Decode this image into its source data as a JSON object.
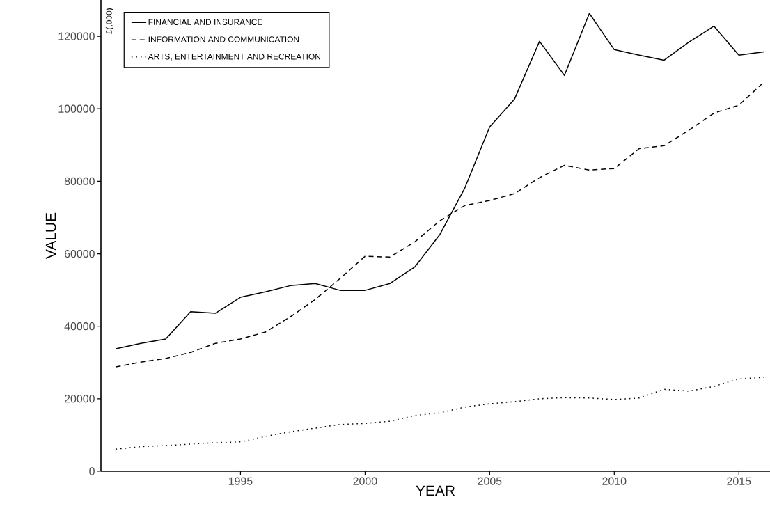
{
  "chart_data": {
    "type": "line",
    "xlabel": "YEAR",
    "ylabel": "VALUE",
    "annotations": [
      "£(,000)"
    ],
    "x": [
      1990,
      1991,
      1992,
      1993,
      1994,
      1995,
      1996,
      1997,
      1998,
      1999,
      2000,
      2001,
      2002,
      2003,
      2004,
      2005,
      2006,
      2007,
      2008,
      2009,
      2010,
      2011,
      2012,
      2013,
      2014,
      2015,
      2016
    ],
    "series": [
      {
        "name": "FINANCIAL AND INSURANCE",
        "color": "#000000",
        "line_style": "solid",
        "values": [
          33800,
          35300,
          36500,
          44000,
          43600,
          48000,
          49500,
          51200,
          51800,
          49900,
          49900,
          51800,
          56400,
          65300,
          78100,
          95000,
          102700,
          118600,
          109200,
          126300,
          116300,
          114800,
          113400,
          118400,
          122800,
          114800,
          115700
        ]
      },
      {
        "name": "INFORMATION AND COMMUNICATION",
        "color": "#000000",
        "line_style": "dashed",
        "values": [
          28800,
          30100,
          31100,
          32800,
          35300,
          36500,
          38400,
          42600,
          47400,
          53200,
          59300,
          59100,
          63300,
          69100,
          73300,
          74700,
          76600,
          81000,
          84400,
          83100,
          83500,
          89000,
          89800,
          94100,
          98800,
          101000,
          107300
        ]
      },
      {
        "name": "ARTS, ENTERTAINMENT AND RECREATION",
        "color": "#000000",
        "line_style": "dotted",
        "values": [
          6100,
          6800,
          7100,
          7500,
          7900,
          8100,
          9600,
          10900,
          11900,
          12900,
          13200,
          13800,
          15400,
          16100,
          17700,
          18600,
          19200,
          20000,
          20300,
          20200,
          19800,
          20200,
          22600,
          22100,
          23400,
          25500,
          25900
        ]
      }
    ],
    "xlim": [
      1989.4,
      2016.25
    ],
    "ylim": [
      0,
      130000
    ],
    "xticks": [
      1995,
      2000,
      2005,
      2010,
      2015
    ],
    "yticks": [
      0,
      20000,
      40000,
      60000,
      80000,
      100000,
      120000
    ],
    "grid": false,
    "legend": "top left"
  }
}
